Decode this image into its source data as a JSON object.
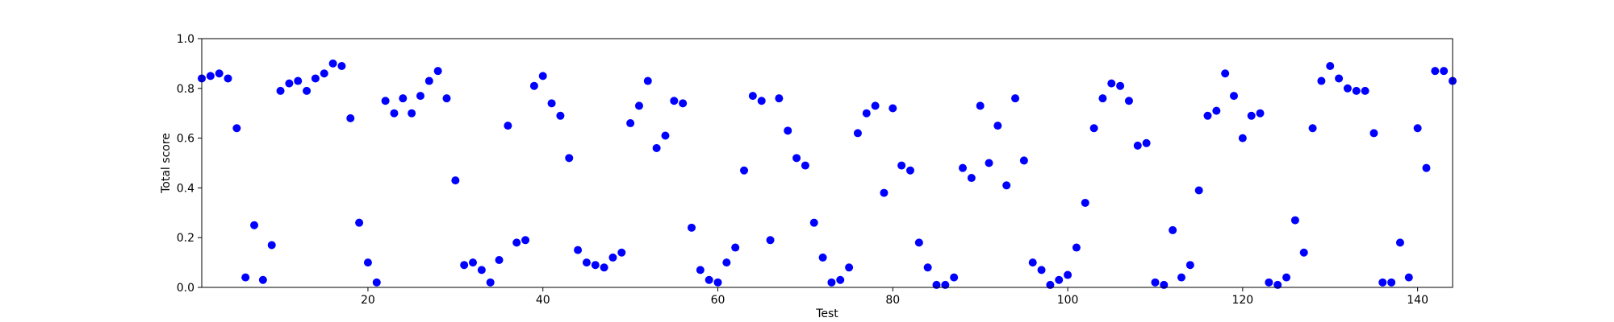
{
  "chart_data": {
    "type": "scatter",
    "xlabel": "Test",
    "ylabel": "Total score",
    "xlim": [
      1,
      144
    ],
    "ylim": [
      0,
      1.0
    ],
    "x_ticks": [
      20,
      40,
      60,
      80,
      100,
      120,
      140
    ],
    "y_ticks": [
      0.0,
      0.2,
      0.4,
      0.6,
      0.8,
      1.0
    ],
    "x_tick_labels": [
      "20",
      "40",
      "60",
      "80",
      "100",
      "120",
      "140"
    ],
    "y_tick_labels": [
      "0.0",
      "0.2",
      "0.4",
      "0.6",
      "0.8",
      "1.0"
    ],
    "grid": false,
    "marker_color": "#0000ff",
    "x": [
      1,
      2,
      3,
      4,
      5,
      6,
      7,
      8,
      9,
      10,
      11,
      12,
      13,
      14,
      15,
      16,
      17,
      18,
      19,
      20,
      21,
      22,
      23,
      24,
      25,
      26,
      27,
      28,
      29,
      30,
      31,
      32,
      33,
      34,
      35,
      36,
      37,
      38,
      39,
      40,
      41,
      42,
      43,
      44,
      45,
      46,
      47,
      48,
      49,
      50,
      51,
      52,
      53,
      54,
      55,
      56,
      57,
      58,
      59,
      60,
      61,
      62,
      63,
      64,
      65,
      66,
      67,
      68,
      69,
      70,
      71,
      72,
      73,
      74,
      75,
      76,
      77,
      78,
      79,
      80,
      81,
      82,
      83,
      84,
      85,
      86,
      87,
      88,
      89,
      90,
      91,
      92,
      93,
      94,
      95,
      96,
      97,
      98,
      99,
      100,
      101,
      102,
      103,
      104,
      105,
      106,
      107,
      108,
      109,
      110,
      111,
      112,
      113,
      114,
      115,
      116,
      117,
      118,
      119,
      120,
      121,
      122,
      123,
      124,
      125,
      126,
      127,
      128,
      129,
      130,
      131,
      132,
      133,
      134,
      135,
      136,
      137,
      138,
      139,
      140,
      141,
      142,
      143,
      144
    ],
    "y": [
      0.84,
      0.85,
      0.86,
      0.84,
      0.64,
      0.04,
      0.25,
      0.03,
      0.17,
      0.79,
      0.82,
      0.83,
      0.79,
      0.84,
      0.86,
      0.9,
      0.89,
      0.68,
      0.26,
      0.1,
      0.02,
      0.75,
      0.7,
      0.76,
      0.7,
      0.77,
      0.83,
      0.87,
      0.76,
      0.43,
      0.09,
      0.1,
      0.07,
      0.02,
      0.11,
      0.65,
      0.18,
      0.19,
      0.81,
      0.85,
      0.74,
      0.69,
      0.52,
      0.15,
      0.1,
      0.09,
      0.08,
      0.12,
      0.14,
      0.66,
      0.73,
      0.83,
      0.56,
      0.61,
      0.75,
      0.74,
      0.24,
      0.07,
      0.03,
      0.02,
      0.1,
      0.16,
      0.47,
      0.77,
      0.75,
      0.19,
      0.76,
      0.63,
      0.52,
      0.49,
      0.26,
      0.12,
      0.02,
      0.03,
      0.08,
      0.62,
      0.7,
      0.73,
      0.38,
      0.72,
      0.49,
      0.47,
      0.18,
      0.08,
      0.01,
      0.01,
      0.04,
      0.48,
      0.44,
      0.73,
      0.5,
      0.65,
      0.41,
      0.76,
      0.51,
      0.1,
      0.07,
      0.01,
      0.03,
      0.05,
      0.16,
      0.34,
      0.64,
      0.76,
      0.82,
      0.81,
      0.75,
      0.57,
      0.58,
      0.02,
      0.01,
      0.23,
      0.04,
      0.09,
      0.39,
      0.69,
      0.71,
      0.86,
      0.77,
      0.6,
      0.69,
      0.7,
      0.02,
      0.01,
      0.04,
      0.27,
      0.14,
      0.64,
      0.83,
      0.89,
      0.84,
      0.8,
      0.79,
      0.79,
      0.62,
      0.02,
      0.02,
      0.18,
      0.04,
      0.64,
      0.48,
      0.87,
      0.87,
      0.83
    ]
  }
}
